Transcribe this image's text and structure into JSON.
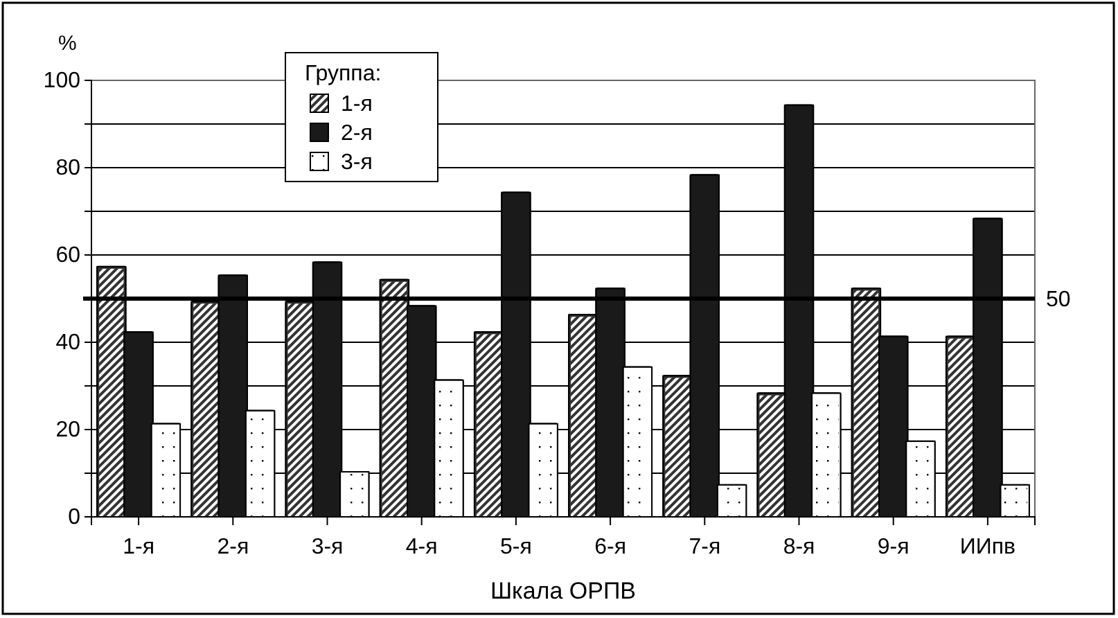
{
  "chart_data": {
    "type": "bar",
    "xlabel": "Шкала ОРПВ",
    "ylabel": "%",
    "legend_title": "Группа:",
    "legend": "top",
    "grid": "y",
    "categories": [
      "1-я",
      "2-я",
      "3-я",
      "4-я",
      "5-я",
      "6-я",
      "7-я",
      "8-я",
      "9-я",
      "ИИпв"
    ],
    "series": [
      {
        "name": "1-я",
        "color": "#333333",
        "values": [
          57,
          49,
          49,
          54,
          42,
          46,
          32,
          28,
          52,
          41
        ]
      },
      {
        "name": "2-я",
        "color": "#1a1a1a",
        "values": [
          42,
          55,
          58,
          48,
          74,
          52,
          78,
          94,
          41,
          68
        ]
      },
      {
        "name": "3-я",
        "color": "#ffffff",
        "values": [
          21,
          24,
          10,
          31,
          21,
          34,
          7,
          28,
          17,
          7
        ]
      }
    ],
    "ylim": [
      0,
      100
    ],
    "yticks": [
      0,
      {
        "value": 10,
        "label": null
      },
      20,
      {
        "value": 30,
        "label": null
      },
      40,
      {
        "value": 50,
        "label": null
      },
      60,
      {
        "value": 70,
        "label": null
      },
      80,
      {
        "value": 90,
        "label": null
      },
      100
    ],
    "ref_lines": [
      {
        "axis": "y",
        "value": 50,
        "label": "50",
        "color": "#000000"
      }
    ]
  }
}
